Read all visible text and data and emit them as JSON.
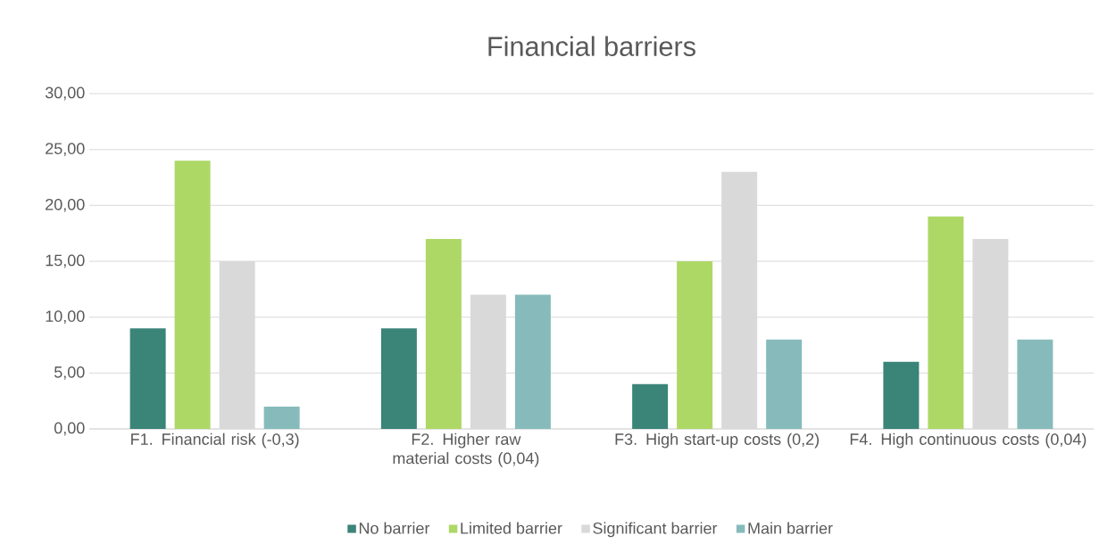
{
  "chart_data": {
    "type": "bar",
    "title": "Financial barriers",
    "categories": [
      "F1. Financial risk (-0,3)",
      "F2. Higher raw material costs (0,04)",
      "F3. High start-up costs (0,2)",
      "F4. High continuous costs (0,04)"
    ],
    "series": [
      {
        "name": "No barrier",
        "color": "#3a8478",
        "values": [
          9,
          9,
          4,
          6
        ]
      },
      {
        "name": "Limited barrier",
        "color": "#add866",
        "values": [
          24,
          17,
          15,
          19
        ]
      },
      {
        "name": "Significant barrier",
        "color": "#d9d9d9",
        "values": [
          15,
          12,
          23,
          17
        ]
      },
      {
        "name": "Main barrier",
        "color": "#87bbbb",
        "values": [
          2,
          12,
          8,
          8
        ]
      }
    ],
    "ylim": [
      0,
      30
    ],
    "yticks": [
      {
        "value": 0,
        "label": "0,00"
      },
      {
        "value": 5,
        "label": "5,00"
      },
      {
        "value": 10,
        "label": "10,00"
      },
      {
        "value": 15,
        "label": "15,00"
      },
      {
        "value": 20,
        "label": "20,00"
      },
      {
        "value": 25,
        "label": "25,00"
      },
      {
        "value": 30,
        "label": "30,00"
      }
    ],
    "grid": "y",
    "legend": "bottom"
  }
}
